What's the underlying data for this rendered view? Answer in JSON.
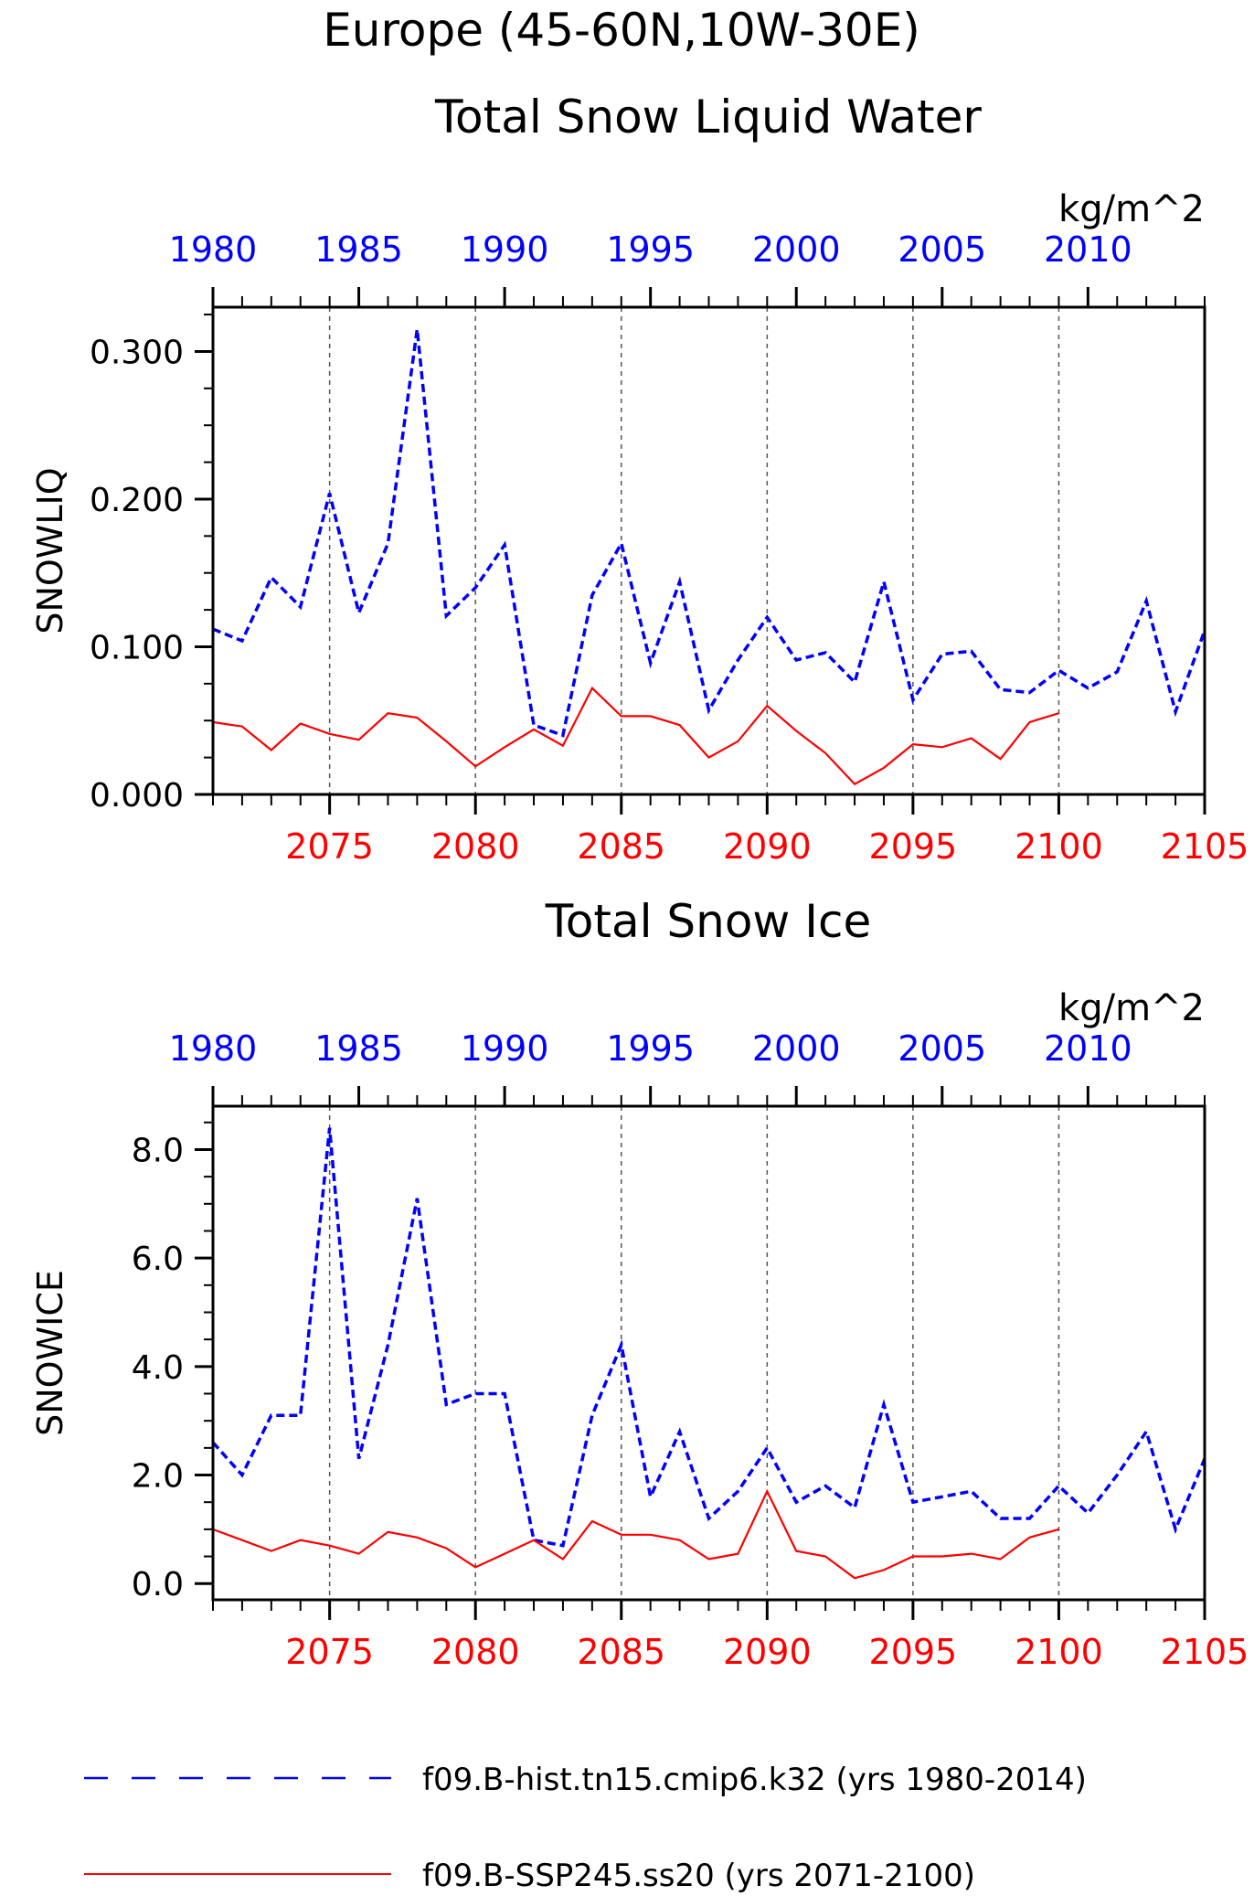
{
  "figure": {
    "title_line1": "Europe (45-60N,10W-30E)",
    "colors": {
      "hist": "#0000ff",
      "ssp": "#ff0000",
      "axis": "#000000",
      "grid": "#555555"
    }
  },
  "legend": {
    "position": "bottom",
    "items": [
      {
        "label": "f09.B-hist.tn15.cmip6.k32 (yrs 1980-2014)",
        "color": "#0000ff",
        "style": "dashed"
      },
      {
        "label": "f09.B-SSP245.ss20 (yrs 2071-2100)",
        "color": "#ff0000",
        "style": "solid"
      }
    ]
  },
  "chart_data": [
    {
      "type": "line",
      "title": "Total Snow Liquid Water",
      "units": "kg/m^2",
      "ylabel": "SNOWLIQ",
      "ylim": [
        0,
        0.33
      ],
      "yticks": [
        "0.000",
        "0.100",
        "0.200",
        "0.300"
      ],
      "ytick_values": [
        0,
        0.1,
        0.2,
        0.3
      ],
      "bottom_xlim": [
        2071,
        2105
      ],
      "bottom_xticks": [
        "2075",
        "2080",
        "2085",
        "2090",
        "2095",
        "2100",
        "2105"
      ],
      "top_xlim": [
        1980,
        2014
      ],
      "top_xticks": [
        "1980",
        "1985",
        "1990",
        "1995",
        "2000",
        "2005",
        "2010"
      ],
      "grid": "vertical dashed lines at bottom-axis major ticks",
      "series": [
        {
          "name": "f09.B-hist.tn15.cmip6.k32 (yrs 1980-2014)",
          "color": "#0000ff",
          "style": "dashed",
          "x": [
            1980,
            1981,
            1982,
            1983,
            1984,
            1985,
            1986,
            1987,
            1988,
            1989,
            1990,
            1991,
            1992,
            1993,
            1994,
            1995,
            1996,
            1997,
            1998,
            1999,
            2000,
            2001,
            2002,
            2003,
            2004,
            2005,
            2006,
            2007,
            2008,
            2009,
            2010,
            2011,
            2012,
            2013,
            2014
          ],
          "values": [
            0.112,
            0.104,
            0.147,
            0.127,
            0.204,
            0.123,
            0.17,
            0.315,
            0.121,
            0.14,
            0.169,
            0.047,
            0.04,
            0.135,
            0.17,
            0.089,
            0.144,
            0.057,
            0.091,
            0.12,
            0.091,
            0.096,
            0.076,
            0.144,
            0.064,
            0.095,
            0.097,
            0.071,
            0.069,
            0.084,
            0.072,
            0.083,
            0.131,
            0.056,
            0.111
          ]
        },
        {
          "name": "f09.B-SSP245.ss20 (yrs 2071-2100)",
          "color": "#ff0000",
          "style": "solid",
          "x": [
            2071,
            2072,
            2073,
            2074,
            2075,
            2076,
            2077,
            2078,
            2079,
            2080,
            2081,
            2082,
            2083,
            2084,
            2085,
            2086,
            2087,
            2088,
            2089,
            2090,
            2091,
            2092,
            2093,
            2094,
            2095,
            2096,
            2097,
            2098,
            2099,
            2100
          ],
          "values": [
            0.049,
            0.046,
            0.03,
            0.048,
            0.041,
            0.037,
            0.055,
            0.052,
            0.036,
            0.019,
            0.032,
            0.044,
            0.033,
            0.072,
            0.053,
            0.053,
            0.047,
            0.025,
            0.036,
            0.06,
            0.043,
            0.028,
            0.007,
            0.018,
            0.034,
            0.032,
            0.038,
            0.024,
            0.049,
            0.055
          ]
        }
      ]
    },
    {
      "type": "line",
      "title": "Total Snow Ice",
      "units": "kg/m^2",
      "ylabel": "SNOWICE",
      "ylim": [
        -0.3,
        8.8
      ],
      "yticks": [
        "0.0",
        "2.0",
        "4.0",
        "6.0",
        "8.0"
      ],
      "ytick_values": [
        0,
        2,
        4,
        6,
        8
      ],
      "bottom_xlim": [
        2071,
        2105
      ],
      "bottom_xticks": [
        "2075",
        "2080",
        "2085",
        "2090",
        "2095",
        "2100",
        "2105"
      ],
      "top_xlim": [
        1980,
        2014
      ],
      "top_xticks": [
        "1980",
        "1985",
        "1990",
        "1995",
        "2000",
        "2005",
        "2010"
      ],
      "grid": "vertical dashed lines at bottom-axis major ticks",
      "series": [
        {
          "name": "f09.B-hist.tn15.cmip6.k32 (yrs 1980-2014)",
          "color": "#0000ff",
          "style": "dashed",
          "x": [
            1980,
            1981,
            1982,
            1983,
            1984,
            1985,
            1986,
            1987,
            1988,
            1989,
            1990,
            1991,
            1992,
            1993,
            1994,
            1995,
            1996,
            1997,
            1998,
            1999,
            2000,
            2001,
            2002,
            2003,
            2004,
            2005,
            2006,
            2007,
            2008,
            2009,
            2010,
            2011,
            2012,
            2013,
            2014
          ],
          "values": [
            2.6,
            2.0,
            3.1,
            3.1,
            8.4,
            2.3,
            4.4,
            7.1,
            3.3,
            3.5,
            3.5,
            0.8,
            0.7,
            3.1,
            4.4,
            1.6,
            2.8,
            1.2,
            1.7,
            2.5,
            1.5,
            1.8,
            1.4,
            3.3,
            1.5,
            1.6,
            1.7,
            1.2,
            1.2,
            1.8,
            1.3,
            2.0,
            2.8,
            1.0,
            2.3
          ]
        },
        {
          "name": "f09.B-SSP245.ss20 (yrs 2071-2100)",
          "color": "#ff0000",
          "style": "solid",
          "x": [
            2071,
            2072,
            2073,
            2074,
            2075,
            2076,
            2077,
            2078,
            2079,
            2080,
            2081,
            2082,
            2083,
            2084,
            2085,
            2086,
            2087,
            2088,
            2089,
            2090,
            2091,
            2092,
            2093,
            2094,
            2095,
            2096,
            2097,
            2098,
            2099,
            2100
          ],
          "values": [
            1.0,
            0.8,
            0.6,
            0.8,
            0.7,
            0.55,
            0.95,
            0.85,
            0.65,
            0.3,
            0.55,
            0.8,
            0.45,
            1.15,
            0.9,
            0.9,
            0.8,
            0.45,
            0.55,
            1.7,
            0.6,
            0.5,
            0.1,
            0.25,
            0.5,
            0.5,
            0.55,
            0.45,
            0.85,
            1.0
          ]
        }
      ]
    }
  ]
}
